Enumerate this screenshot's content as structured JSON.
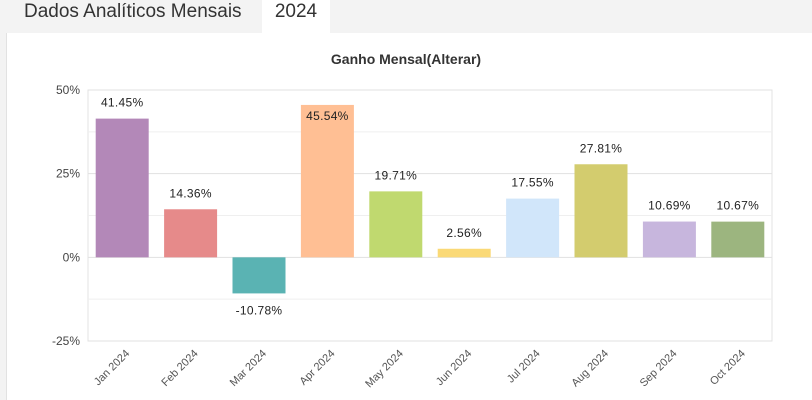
{
  "header": {
    "title": "Dados Analíticos Mensais",
    "year_tab": "2024"
  },
  "chart_data": {
    "type": "bar",
    "title": "Ganho Mensal(Alterar)",
    "xlabel": "",
    "ylabel": "",
    "ylim": [
      -25,
      50
    ],
    "yticks": [
      -25,
      0,
      25,
      50
    ],
    "ytick_labels": [
      "-25%",
      "0%",
      "25%",
      "50%"
    ],
    "grid": true,
    "categories": [
      "Jan 2024",
      "Feb 2024",
      "Mar 2024",
      "Apr 2024",
      "May 2024",
      "Jun 2024",
      "Jul 2024",
      "Aug 2024",
      "Sep 2024",
      "Oct 2024"
    ],
    "values": [
      41.45,
      14.36,
      -10.78,
      45.54,
      19.71,
      2.56,
      17.55,
      27.81,
      10.69,
      10.67
    ],
    "labels": [
      "41.45%",
      "14.36%",
      "-10.78%",
      "45.54%",
      "19.71%",
      "2.56%",
      "17.55%",
      "27.81%",
      "10.69%",
      "10.67%"
    ],
    "colors": [
      "#b388b8",
      "#e68a8a",
      "#5ab3b3",
      "#ffbf94",
      "#c0d96f",
      "#fad976",
      "#d1e6fa",
      "#d3cc6e",
      "#c7b6dd",
      "#9cb57f"
    ]
  }
}
